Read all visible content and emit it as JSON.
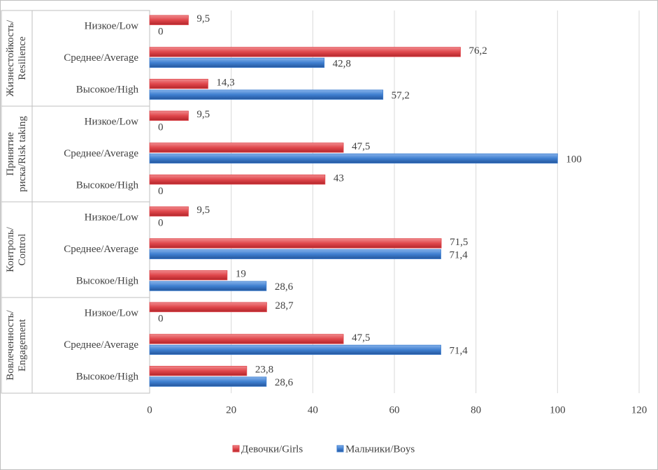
{
  "chart_data": {
    "type": "grouped-bar-horizontal",
    "groups": [
      {
        "name": [
          "Жизнестойкость/",
          "Resilience"
        ],
        "categories": [
          "Низкое/Low",
          "Среднее/Average",
          "Высокое/High"
        ]
      },
      {
        "name": [
          "Принятие",
          "риска/Risk taking"
        ],
        "categories": [
          "Низкое/Low",
          "Среднее/Average",
          "Высокое/High"
        ]
      },
      {
        "name": [
          "Контроль/",
          "Control"
        ],
        "categories": [
          "Низкое/Low",
          "Среднее/Average",
          "Высокое/High"
        ]
      },
      {
        "name": [
          "Вовлеченность/",
          "Engagement"
        ],
        "categories": [
          "Низкое/Low",
          "Среднее/Average",
          "Высокое/High"
        ]
      }
    ],
    "series": [
      {
        "name": "Девочки/Girls",
        "color": "#e0474c",
        "values": [
          9.5,
          76.2,
          14.3,
          9.5,
          47.5,
          43,
          9.5,
          71.5,
          19,
          28.7,
          47.5,
          23.8
        ],
        "value_labels": [
          "9,5",
          "76,2",
          "14,3",
          "9,5",
          "47,5",
          "43",
          "9,5",
          "71,5",
          "19",
          "28,7",
          "47,5",
          "23,8"
        ]
      },
      {
        "name": "Мальчики/Boys",
        "color": "#3f7fd0",
        "values": [
          0,
          42.8,
          57.2,
          0,
          100,
          0,
          0,
          71.4,
          28.6,
          0,
          71.4,
          28.6
        ],
        "value_labels": [
          "0",
          "42,8",
          "57,2",
          "0",
          "100",
          "0",
          "0",
          "71,4",
          "28,6",
          "0",
          "71,4",
          "28,6"
        ]
      }
    ],
    "xlim": [
      0,
      120
    ],
    "xticks": [
      0,
      20,
      40,
      60,
      80,
      100,
      120
    ],
    "grid": true,
    "legend": "bottom"
  }
}
